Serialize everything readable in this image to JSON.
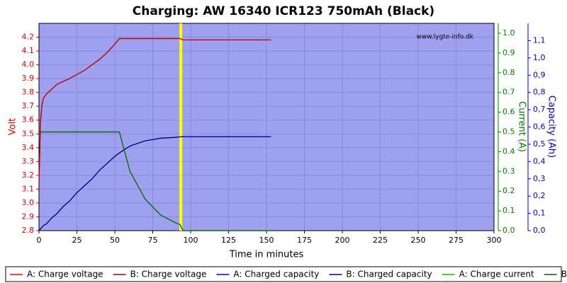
{
  "chart_data": {
    "type": "line",
    "title": "Charging: AW 16340 ICR123 750mAh (Black)",
    "watermark": "www.lygte-info.dk",
    "xlabel": "Time in minutes",
    "ylabel": "Volt",
    "y2label": "Current (A)",
    "y3label": "Capacity (Ah)",
    "xlim": [
      0,
      300
    ],
    "xticks": [
      0,
      25,
      50,
      75,
      100,
      125,
      150,
      175,
      200,
      225,
      250,
      275,
      300
    ],
    "ylim": [
      2.8,
      4.3
    ],
    "yticks": [
      2.8,
      2.9,
      {
        "value": 3.0,
        "label": "3.0"
      },
      3.1,
      3.2,
      3.3,
      3.4,
      3.5,
      3.6,
      3.7,
      3.8,
      3.9,
      {
        "value": 4.0,
        "label": "4.0"
      },
      4.1,
      4.2
    ],
    "y2lim": [
      0,
      1.05
    ],
    "y2ticks": [
      {
        "value": 0,
        "label": "0.0"
      },
      0.1,
      0.2,
      0.3,
      0.4,
      0.5,
      0.6,
      0.7,
      0.8,
      0.9,
      {
        "value": 1,
        "label": "1.0"
      }
    ],
    "y3lim": [
      0,
      1.2
    ],
    "y3ticks": [
      {
        "value": 0,
        "label": "0,0"
      },
      {
        "value": 0.1,
        "label": "0,1"
      },
      {
        "value": 0.2,
        "label": "0,2"
      },
      {
        "value": 0.3,
        "label": "0,3"
      },
      {
        "value": 0.4,
        "label": "0,4"
      },
      {
        "value": 0.5,
        "label": "0,5"
      },
      {
        "value": 0.6,
        "label": "0,6"
      },
      {
        "value": 0.7,
        "label": "0,7"
      },
      {
        "value": 0.8,
        "label": "0,8"
      },
      {
        "value": 0.9,
        "label": "0,9"
      },
      {
        "value": 1.0,
        "label": "1,0"
      },
      {
        "value": 1.1,
        "label": "1,1"
      }
    ],
    "grid": true,
    "highlight_x": 93.5,
    "highlight_color": "#ffff00",
    "x": [
      0,
      1,
      2,
      3,
      5,
      8,
      12,
      16,
      20,
      25,
      30,
      35,
      40,
      45,
      50,
      53,
      60,
      70,
      80,
      90,
      93,
      95,
      100,
      110,
      120,
      130,
      140,
      153
    ],
    "series": [
      {
        "name": "A: Charge voltage",
        "color": "#ff0000",
        "axis": "y",
        "values": [
          3.15,
          3.6,
          3.72,
          3.76,
          3.79,
          3.82,
          3.86,
          3.88,
          3.9,
          3.93,
          3.96,
          4.0,
          4.04,
          4.09,
          4.15,
          4.19,
          4.19,
          4.19,
          4.19,
          4.19,
          4.19,
          4.18,
          4.18,
          4.18,
          4.18,
          4.18,
          4.18,
          4.18
        ]
      },
      {
        "name": "B: Charge voltage",
        "color": "#b00000",
        "axis": "y",
        "values": [
          3.14,
          3.58,
          3.71,
          3.76,
          3.79,
          3.82,
          3.86,
          3.88,
          3.9,
          3.93,
          3.96,
          4.0,
          4.04,
          4.09,
          4.15,
          4.19,
          4.19,
          4.19,
          4.19,
          4.19,
          4.19,
          4.18,
          4.18,
          4.18,
          4.18,
          4.18,
          4.18,
          4.18
        ]
      },
      {
        "name": "A: Charged capacity",
        "color": "#0000ff",
        "axis": "y3",
        "values": [
          0,
          0.01,
          0.02,
          0.03,
          0.04,
          0.07,
          0.1,
          0.14,
          0.17,
          0.22,
          0.26,
          0.3,
          0.35,
          0.39,
          0.43,
          0.45,
          0.49,
          0.52,
          0.535,
          0.54,
          0.543,
          0.544,
          0.544,
          0.544,
          0.544,
          0.544,
          0.544,
          0.544
        ]
      },
      {
        "name": "B: Charged capacity",
        "color": "#000080",
        "axis": "y3",
        "values": [
          0,
          0.01,
          0.02,
          0.03,
          0.04,
          0.07,
          0.1,
          0.14,
          0.17,
          0.22,
          0.26,
          0.3,
          0.35,
          0.39,
          0.43,
          0.45,
          0.49,
          0.52,
          0.535,
          0.54,
          0.543,
          0.544,
          0.544,
          0.544,
          0.544,
          0.544,
          0.544,
          0.544
        ]
      },
      {
        "name": "A: Charge current",
        "color": "#00cc00",
        "axis": "y2",
        "values": [
          0.5,
          0.5,
          0.5,
          0.5,
          0.5,
          0.5,
          0.5,
          0.5,
          0.5,
          0.5,
          0.5,
          0.5,
          0.5,
          0.5,
          0.5,
          0.5,
          0.3,
          0.16,
          0.08,
          0.04,
          0.03,
          0,
          0,
          0,
          0,
          0,
          0,
          0
        ]
      },
      {
        "name": "B: Charge current",
        "color": "#006400",
        "axis": "y2",
        "values": [
          0.5,
          0.5,
          0.5,
          0.5,
          0.5,
          0.5,
          0.5,
          0.5,
          0.5,
          0.5,
          0.5,
          0.5,
          0.5,
          0.5,
          0.5,
          0.5,
          0.3,
          0.16,
          0.08,
          0.04,
          0.03,
          0,
          0,
          0,
          0,
          0,
          0,
          0
        ]
      }
    ]
  }
}
